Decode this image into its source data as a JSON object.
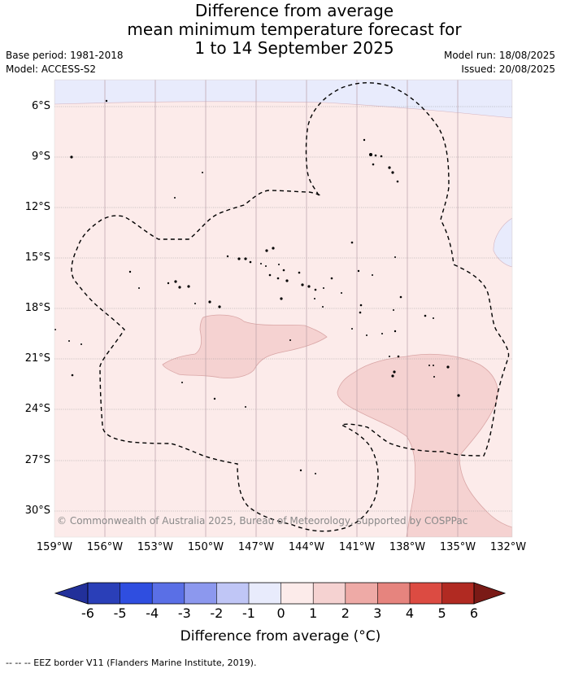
{
  "title": {
    "line1": "Difference from average",
    "line2": "mean minimum temperature forecast for",
    "line3": "1 to 14 September 2025"
  },
  "meta": {
    "base_period": "Base period: 1981-2018",
    "model": "Model: ACCESS-S2",
    "model_run": "Model run: 18/08/2025",
    "issued": "Issued: 20/08/2025"
  },
  "map": {
    "lat_ticks": [
      "6°S",
      "9°S",
      "12°S",
      "15°S",
      "18°S",
      "21°S",
      "24°S",
      "27°S",
      "30°S"
    ],
    "lon_ticks": [
      "159°W",
      "156°W",
      "153°W",
      "150°W",
      "147°W",
      "144°W",
      "141°W",
      "138°W",
      "135°W",
      "132°W"
    ],
    "copyright": "© Commonwealth of Australia 2025, Bureau of Meteorology, supported by COSPPac"
  },
  "colorbar": {
    "title": "Difference from average (°C)",
    "labels": [
      "-6",
      "-5",
      "-4",
      "-3",
      "-2",
      "-1",
      "0",
      "1",
      "2",
      "3",
      "4",
      "5",
      "6"
    ],
    "colors": [
      "#22309a",
      "#2a3fb8",
      "#2f4ee0",
      "#5a6fe6",
      "#8c98ee",
      "#c0c6f6",
      "#e8ebfc",
      "#fcebea",
      "#f5d2d1",
      "#eeaaa6",
      "#e6847e",
      "#dc4b42",
      "#b12a22",
      "#7a1a16"
    ]
  },
  "footer": "-- -- -- EEZ border V11 (Flanders Marine Institute, 2019)."
}
